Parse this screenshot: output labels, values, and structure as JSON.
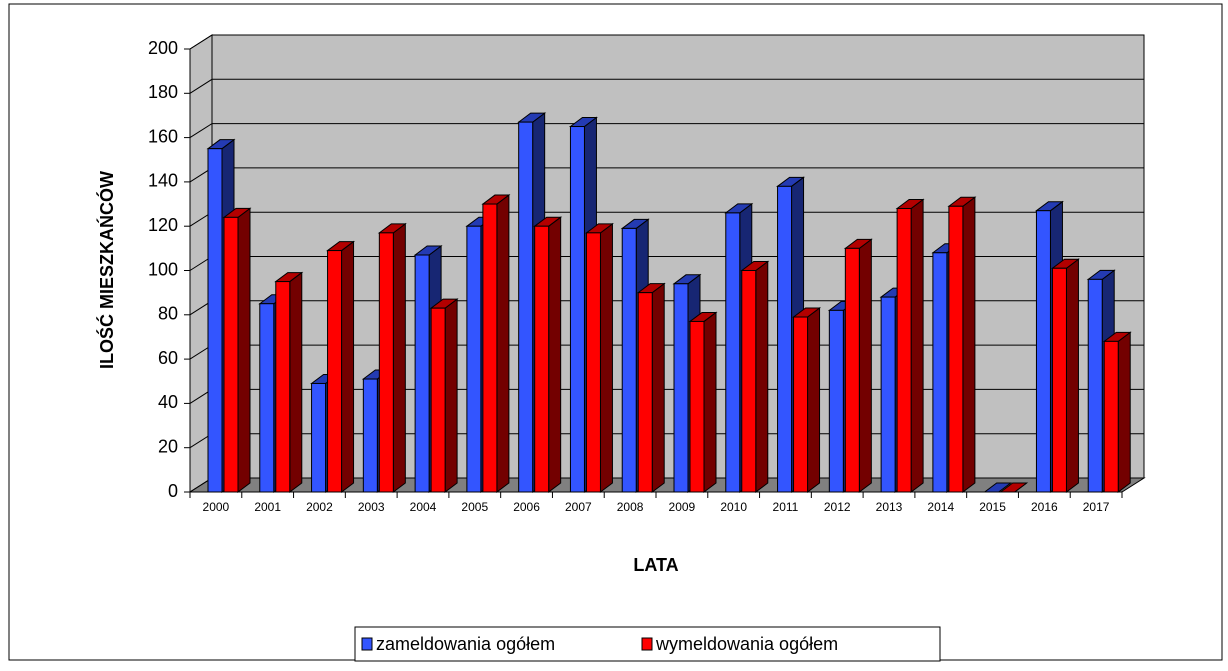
{
  "chart_data": {
    "type": "bar3d",
    "ylabel": "ILOŚĆ MIESZKAŃCÓW",
    "xlabel": "LATA",
    "categories": [
      "2000",
      "2001",
      "2002",
      "2003",
      "2004",
      "2005",
      "2006",
      "2007",
      "2008",
      "2009",
      "2010",
      "2011",
      "2012",
      "2013",
      "2014",
      "2015",
      "2016",
      "2017"
    ],
    "series": [
      {
        "name": "zameldowania ogółem",
        "color": "#3355ff",
        "values": [
          155,
          85,
          49,
          51,
          107,
          120,
          167,
          165,
          119,
          94,
          126,
          138,
          82,
          88,
          108,
          0,
          127,
          96
        ]
      },
      {
        "name": "wymeldowania ogółem",
        "color": "#ff0000",
        "values": [
          124,
          95,
          109,
          117,
          83,
          130,
          120,
          117,
          90,
          77,
          100,
          79,
          110,
          128,
          129,
          0,
          101,
          68
        ]
      }
    ],
    "ylim": [
      0,
      200
    ],
    "yticks": [
      0,
      20,
      40,
      60,
      80,
      100,
      120,
      140,
      160,
      180,
      200
    ],
    "grid": true
  }
}
